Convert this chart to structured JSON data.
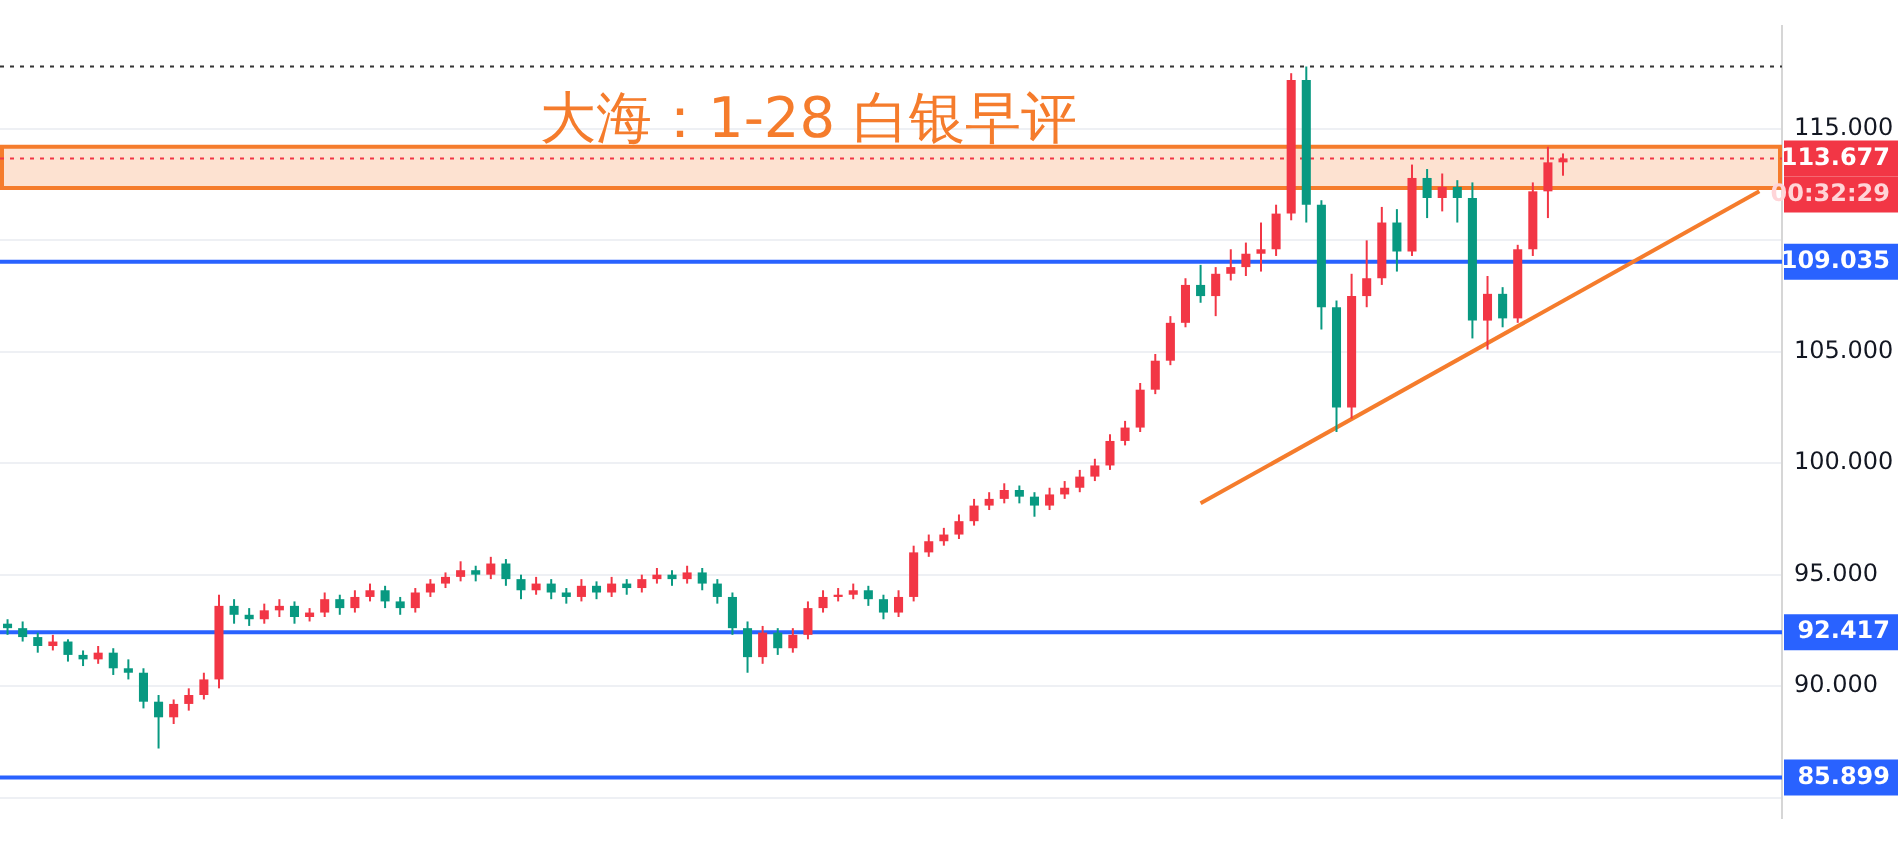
{
  "chart_data": {
    "type": "candlestick",
    "title": "大海：1-28 白银早评",
    "categories": [
      null,
      null,
      null,
      null,
      null,
      null,
      null,
      null,
      null,
      null,
      null,
      null,
      null,
      null,
      null,
      null,
      null,
      null,
      null,
      null,
      null,
      null,
      null,
      null,
      null,
      null,
      null,
      null,
      null,
      null,
      null,
      null,
      null,
      null,
      null,
      null,
      null,
      null,
      null,
      null,
      null,
      null,
      null,
      null,
      null,
      null,
      null,
      null,
      null,
      null,
      null,
      null,
      null,
      null,
      null,
      null,
      null,
      null,
      null,
      null,
      null,
      null,
      null,
      null,
      null,
      null,
      null,
      null,
      null,
      null,
      null,
      null,
      null,
      null,
      null,
      null,
      null,
      null,
      null,
      null,
      null,
      null,
      null,
      null,
      null,
      null,
      null,
      null,
      null,
      null,
      null,
      null,
      null,
      null,
      null,
      null,
      null,
      null,
      null,
      null,
      null,
      null,
      null,
      null,
      null,
      null,
      null,
      null,
      null,
      null,
      null,
      null,
      null,
      null,
      null,
      null,
      null,
      null
    ],
    "series": [
      {
        "ohlc": [
          [
            92.8,
            93.0,
            92.3,
            92.6
          ],
          [
            92.6,
            92.9,
            92.0,
            92.2
          ],
          [
            92.2,
            92.4,
            91.5,
            91.8
          ],
          [
            91.8,
            92.3,
            91.6,
            92.0
          ],
          [
            92.0,
            92.1,
            91.1,
            91.4
          ],
          [
            91.4,
            91.6,
            90.9,
            91.2
          ],
          [
            91.2,
            91.8,
            91.0,
            91.5
          ],
          [
            91.5,
            91.7,
            90.5,
            90.8
          ],
          [
            90.8,
            91.2,
            90.3,
            90.6
          ],
          [
            90.6,
            90.8,
            89.0,
            89.3
          ],
          [
            89.3,
            89.6,
            87.2,
            88.6
          ],
          [
            88.6,
            89.4,
            88.3,
            89.2
          ],
          [
            89.2,
            89.9,
            88.9,
            89.6
          ],
          [
            89.6,
            90.6,
            89.4,
            90.3
          ],
          [
            90.3,
            94.1,
            89.9,
            93.6
          ],
          [
            93.6,
            93.9,
            92.8,
            93.2
          ],
          [
            93.2,
            93.5,
            92.7,
            93.0
          ],
          [
            93.0,
            93.7,
            92.8,
            93.4
          ],
          [
            93.4,
            93.9,
            93.1,
            93.6
          ],
          [
            93.6,
            93.8,
            92.8,
            93.1
          ],
          [
            93.1,
            93.5,
            92.9,
            93.3
          ],
          [
            93.3,
            94.2,
            93.1,
            93.9
          ],
          [
            93.9,
            94.1,
            93.2,
            93.5
          ],
          [
            93.5,
            94.3,
            93.3,
            94.0
          ],
          [
            94.0,
            94.6,
            93.8,
            94.3
          ],
          [
            94.3,
            94.5,
            93.5,
            93.8
          ],
          [
            93.8,
            94.0,
            93.2,
            93.5
          ],
          [
            93.5,
            94.4,
            93.3,
            94.2
          ],
          [
            94.2,
            94.8,
            94.0,
            94.6
          ],
          [
            94.6,
            95.1,
            94.4,
            94.9
          ],
          [
            94.9,
            95.6,
            94.7,
            95.2
          ],
          [
            95.2,
            95.4,
            94.7,
            95.0
          ],
          [
            95.0,
            95.8,
            94.8,
            95.5
          ],
          [
            95.5,
            95.7,
            94.5,
            94.8
          ],
          [
            94.8,
            95.0,
            93.9,
            94.3
          ],
          [
            94.3,
            94.9,
            94.1,
            94.6
          ],
          [
            94.6,
            94.8,
            93.9,
            94.2
          ],
          [
            94.2,
            94.4,
            93.7,
            94.0
          ],
          [
            94.0,
            94.8,
            93.8,
            94.5
          ],
          [
            94.5,
            94.7,
            93.9,
            94.2
          ],
          [
            94.2,
            94.9,
            94.0,
            94.6
          ],
          [
            94.6,
            94.8,
            94.1,
            94.4
          ],
          [
            94.4,
            95.0,
            94.2,
            94.8
          ],
          [
            94.8,
            95.3,
            94.6,
            95.0
          ],
          [
            95.0,
            95.2,
            94.5,
            94.8
          ],
          [
            94.8,
            95.4,
            94.6,
            95.1
          ],
          [
            95.1,
            95.3,
            94.3,
            94.6
          ],
          [
            94.6,
            94.8,
            93.7,
            94.0
          ],
          [
            94.0,
            94.2,
            92.3,
            92.6
          ],
          [
            92.6,
            92.9,
            90.6,
            91.3
          ],
          [
            91.3,
            92.7,
            91.0,
            92.4
          ],
          [
            92.4,
            92.6,
            91.4,
            91.7
          ],
          [
            91.7,
            92.6,
            91.5,
            92.3
          ],
          [
            92.3,
            93.8,
            92.1,
            93.5
          ],
          [
            93.5,
            94.3,
            93.3,
            94.0
          ],
          [
            94.0,
            94.4,
            93.8,
            94.1
          ],
          [
            94.1,
            94.6,
            93.9,
            94.3
          ],
          [
            94.3,
            94.5,
            93.6,
            93.9
          ],
          [
            93.9,
            94.1,
            93.0,
            93.3
          ],
          [
            93.3,
            94.3,
            93.1,
            94.0
          ],
          [
            94.0,
            96.3,
            93.8,
            96.0
          ],
          [
            96.0,
            96.8,
            95.8,
            96.5
          ],
          [
            96.5,
            97.1,
            96.3,
            96.8
          ],
          [
            96.8,
            97.7,
            96.6,
            97.4
          ],
          [
            97.4,
            98.4,
            97.2,
            98.1
          ],
          [
            98.1,
            98.7,
            97.9,
            98.4
          ],
          [
            98.4,
            99.1,
            98.2,
            98.8
          ],
          [
            98.8,
            99.0,
            98.2,
            98.5
          ],
          [
            98.5,
            98.7,
            97.6,
            98.1
          ],
          [
            98.1,
            98.9,
            97.9,
            98.6
          ],
          [
            98.6,
            99.2,
            98.4,
            98.9
          ],
          [
            98.9,
            99.7,
            98.7,
            99.4
          ],
          [
            99.4,
            100.2,
            99.2,
            99.9
          ],
          [
            99.9,
            101.3,
            99.7,
            101.0
          ],
          [
            101.0,
            101.9,
            100.8,
            101.6
          ],
          [
            101.6,
            103.6,
            101.4,
            103.3
          ],
          [
            103.3,
            104.9,
            103.1,
            104.6
          ],
          [
            104.6,
            106.6,
            104.4,
            106.3
          ],
          [
            106.3,
            108.3,
            106.1,
            108.0
          ],
          [
            108.0,
            108.9,
            107.2,
            107.5
          ],
          [
            107.5,
            108.8,
            106.6,
            108.5
          ],
          [
            108.5,
            109.6,
            108.2,
            108.8
          ],
          [
            108.8,
            109.9,
            108.4,
            109.4
          ],
          [
            109.4,
            110.8,
            108.6,
            109.6
          ],
          [
            109.6,
            111.6,
            109.3,
            111.2
          ],
          [
            111.2,
            117.5,
            110.9,
            117.2
          ],
          [
            117.2,
            117.8,
            110.8,
            111.6
          ],
          [
            111.6,
            111.8,
            106.0,
            107.0
          ],
          [
            107.0,
            107.3,
            101.4,
            102.5
          ],
          [
            102.5,
            108.5,
            102.0,
            107.5
          ],
          [
            107.5,
            110.0,
            107.0,
            108.3
          ],
          [
            108.3,
            111.5,
            108.0,
            110.8
          ],
          [
            110.8,
            111.4,
            108.6,
            109.5
          ],
          [
            109.5,
            113.4,
            109.3,
            112.8
          ],
          [
            112.8,
            113.2,
            111.0,
            111.9
          ],
          [
            111.9,
            113.0,
            111.3,
            112.4
          ],
          [
            112.4,
            112.7,
            110.8,
            111.9
          ],
          [
            111.9,
            112.6,
            105.6,
            106.4
          ],
          [
            106.4,
            108.4,
            105.1,
            107.6
          ],
          [
            107.6,
            107.9,
            106.1,
            106.5
          ],
          [
            106.5,
            109.8,
            106.3,
            109.6
          ],
          [
            109.6,
            112.6,
            109.3,
            112.2
          ],
          [
            112.2,
            114.2,
            111.0,
            113.5
          ],
          [
            113.5,
            113.9,
            112.9,
            113.677
          ],
          null,
          null,
          null,
          null,
          null,
          null,
          null,
          null,
          null,
          null,
          null,
          null,
          null,
          null
        ],
        "colors": [
          "#089981",
          "#089981",
          "#089981",
          "#f23645",
          "#089981",
          "#089981",
          "#f23645",
          "#089981",
          "#089981",
          "#089981",
          "#089981",
          "#f23645",
          "#f23645",
          "#f23645",
          "#f23645",
          "#089981",
          "#089981",
          "#f23645",
          "#f23645",
          "#089981",
          "#f23645",
          "#f23645",
          "#089981",
          "#f23645",
          "#f23645",
          "#089981",
          "#089981",
          "#f23645",
          "#f23645",
          "#f23645",
          "#f23645",
          "#089981",
          "#f23645",
          "#089981",
          "#089981",
          "#f23645",
          "#089981",
          "#089981",
          "#f23645",
          "#089981",
          "#f23645",
          "#089981",
          "#f23645",
          "#f23645",
          "#089981",
          "#f23645",
          "#089981",
          "#089981",
          "#089981",
          "#089981",
          "#f23645",
          "#089981",
          "#f23645",
          "#f23645",
          "#f23645",
          "#f23645",
          "#f23645",
          "#089981",
          "#089981",
          "#f23645",
          "#f23645",
          "#f23645",
          "#f23645",
          "#f23645",
          "#f23645",
          "#f23645",
          "#f23645",
          "#089981",
          "#089981",
          "#f23645",
          "#f23645",
          "#f23645",
          "#f23645",
          "#f23645",
          "#f23645",
          "#f23645",
          "#f23645",
          "#f23645",
          "#f23645",
          "#089981",
          "#f23645",
          "#f23645",
          "#f23645",
          "#f23645",
          "#f23645",
          "#f23645",
          "#089981",
          "#089981",
          "#089981",
          "#f23645",
          "#f23645",
          "#f23645",
          "#089981",
          "#f23645",
          "#089981",
          "#f23645",
          "#089981",
          "#089981",
          "#f23645",
          "#089981",
          "#f23645",
          "#f23645",
          "#f23645",
          "#f23645",
          null,
          null,
          null,
          null,
          null,
          null,
          null,
          null,
          null,
          null,
          null,
          null,
          null,
          null
        ]
      },
      {
        "type": "line",
        "values": [
          null,
          null,
          null,
          null,
          null,
          null,
          null,
          null,
          null,
          null,
          null,
          null,
          null,
          null,
          null,
          null,
          null,
          null,
          null,
          null,
          null,
          null,
          null,
          null,
          null,
          null,
          null,
          null,
          null,
          null,
          null,
          null,
          null,
          null,
          null,
          null,
          null,
          null,
          null,
          null,
          null,
          null,
          null,
          null,
          null,
          null,
          null,
          null,
          null,
          null,
          null,
          null,
          null,
          null,
          null,
          null,
          null,
          null,
          null,
          null,
          null,
          null,
          null,
          null,
          null,
          null,
          null,
          null,
          null,
          null,
          null,
          null,
          null,
          null,
          null,
          null,
          null,
          null,
          null,
          98.2,
          null,
          null,
          null,
          null,
          null,
          null,
          null,
          null,
          null,
          null,
          null,
          null,
          null,
          null,
          null,
          null,
          null,
          null,
          null,
          null,
          null,
          null,
          null,
          null,
          null,
          null,
          null,
          null,
          null,
          null,
          null,
          null,
          null,
          null,
          null,
          null,
          112.2,
          null
        ],
        "color": "#f57c2c"
      }
    ],
    "ylim": [
      84.1,
      119.6
    ],
    "yticks": [
      {
        "value": 85,
        "label": null
      },
      {
        "value": 90,
        "label": "90.000"
      },
      {
        "value": 95,
        "label": "95.000"
      },
      {
        "value": 100,
        "label": "100.000"
      },
      {
        "value": 105,
        "label": "105.000"
      },
      {
        "value": 110,
        "label": null
      },
      {
        "value": 115,
        "label": "115.000"
      }
    ],
    "tick_labels": "y",
    "grid": "y",
    "legend": false,
    "marker": "none",
    "bands": [
      {
        "axis": "y",
        "from": 112.35,
        "to": 114.2,
        "color": "#f57c2c"
      }
    ],
    "ref_lines": [
      {
        "axis": "y",
        "value": 113.677,
        "label": "113.677",
        "color": "#f23645",
        "line_style": "dotted"
      },
      {
        "axis": "y",
        "value": 117.8,
        "color": "#333333",
        "line_style": "dotted"
      },
      {
        "axis": "y",
        "value": 109.035,
        "label": "109.035",
        "color": "#2962ff"
      },
      {
        "axis": "y",
        "value": 92.417,
        "label": "92.417",
        "color": "#2962ff"
      },
      {
        "axis": "y",
        "value": 85.899,
        "label": "85.899",
        "color": "#2962ff"
      }
    ],
    "annotations": [
      "00:32:29"
    ]
  }
}
